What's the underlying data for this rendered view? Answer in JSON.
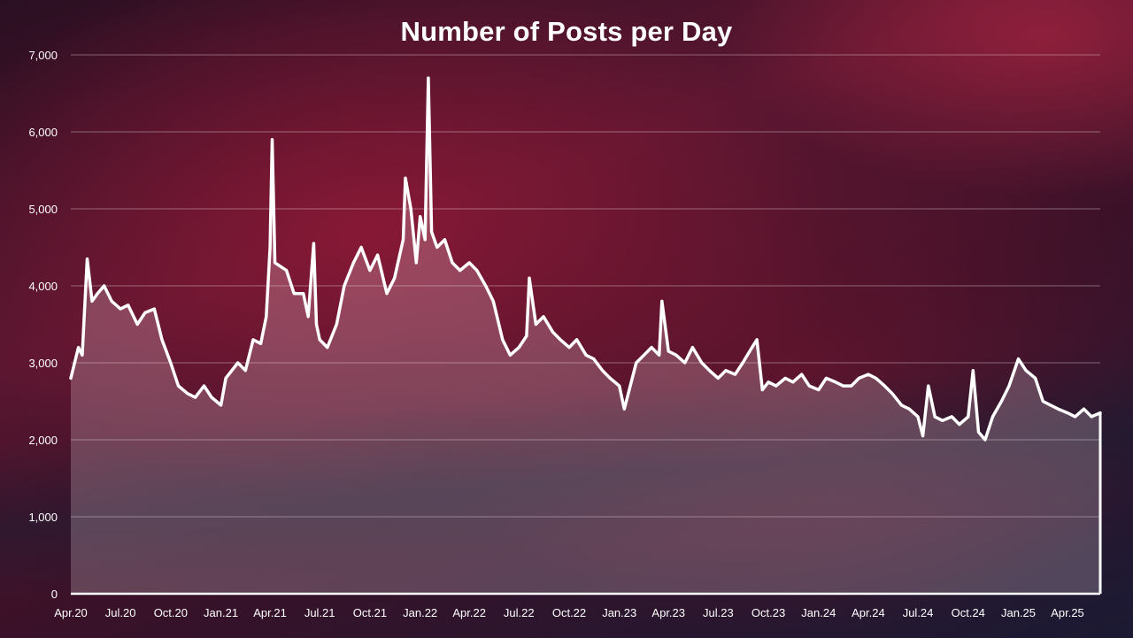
{
  "chart_data": {
    "type": "line",
    "title": "Number of Posts per Day",
    "xlabel": "",
    "ylabel": "",
    "ylim": [
      0,
      7000
    ],
    "yticks": [
      "0",
      "1,000",
      "2,000",
      "3,000",
      "4,000",
      "5,000",
      "6,000",
      "7,000"
    ],
    "ytick_values": [
      0,
      1000,
      2000,
      3000,
      4000,
      5000,
      6000,
      7000
    ],
    "xlim": [
      "2020-04-01",
      "2025-05-31"
    ],
    "x_tick_labels": [
      "Apr.20",
      "Jul.20",
      "Oct.20",
      "Jan.21",
      "Apr.21",
      "Jul.21",
      "Oct.21",
      "Jan.22",
      "Apr.22",
      "Jul.22",
      "Oct.22",
      "Jan.23",
      "Apr.23",
      "Jul.23",
      "Oct.23",
      "Jan.24",
      "Apr.24",
      "Jul.24",
      "Oct.24",
      "Jan.25",
      "Apr.25"
    ],
    "x_tick_dates": [
      "2020-04-01",
      "2020-07-01",
      "2020-10-01",
      "2021-01-01",
      "2021-04-01",
      "2021-07-01",
      "2021-10-01",
      "2022-01-01",
      "2022-04-01",
      "2022-07-01",
      "2022-10-01",
      "2023-01-01",
      "2023-04-01",
      "2023-07-01",
      "2023-10-01",
      "2024-01-01",
      "2024-04-01",
      "2024-07-01",
      "2024-10-01",
      "2025-01-01",
      "2025-04-01"
    ],
    "grid": true,
    "series": [
      {
        "name": "",
        "color": "#ffffff",
        "points": [
          [
            "2020-04-01",
            2800
          ],
          [
            "2020-04-08",
            3000
          ],
          [
            "2020-04-15",
            3200
          ],
          [
            "2020-04-22",
            3100
          ],
          [
            "2020-05-01",
            4350
          ],
          [
            "2020-05-10",
            3800
          ],
          [
            "2020-05-20",
            3900
          ],
          [
            "2020-06-01",
            4000
          ],
          [
            "2020-06-15",
            3800
          ],
          [
            "2020-07-01",
            3700
          ],
          [
            "2020-07-15",
            3750
          ],
          [
            "2020-08-01",
            3500
          ],
          [
            "2020-08-15",
            3650
          ],
          [
            "2020-09-01",
            3700
          ],
          [
            "2020-09-15",
            3300
          ],
          [
            "2020-10-01",
            3000
          ],
          [
            "2020-10-15",
            2700
          ],
          [
            "2020-11-01",
            2600
          ],
          [
            "2020-11-15",
            2550
          ],
          [
            "2020-12-01",
            2700
          ],
          [
            "2020-12-15",
            2550
          ],
          [
            "2021-01-01",
            2450
          ],
          [
            "2021-01-10",
            2800
          ],
          [
            "2021-02-01",
            3000
          ],
          [
            "2021-02-15",
            2900
          ],
          [
            "2021-03-01",
            3300
          ],
          [
            "2021-03-15",
            3250
          ],
          [
            "2021-03-25",
            3600
          ],
          [
            "2021-04-01",
            4500
          ],
          [
            "2021-04-05",
            5900
          ],
          [
            "2021-04-10",
            4300
          ],
          [
            "2021-05-01",
            4200
          ],
          [
            "2021-05-15",
            3900
          ],
          [
            "2021-06-01",
            3900
          ],
          [
            "2021-06-10",
            3600
          ],
          [
            "2021-06-20",
            4550
          ],
          [
            "2021-06-25",
            3500
          ],
          [
            "2021-07-01",
            3300
          ],
          [
            "2021-07-15",
            3200
          ],
          [
            "2021-08-01",
            3500
          ],
          [
            "2021-08-15",
            4000
          ],
          [
            "2021-09-01",
            4300
          ],
          [
            "2021-09-15",
            4500
          ],
          [
            "2021-10-01",
            4200
          ],
          [
            "2021-10-15",
            4400
          ],
          [
            "2021-11-01",
            3900
          ],
          [
            "2021-11-15",
            4100
          ],
          [
            "2021-12-01",
            4600
          ],
          [
            "2021-12-05",
            5400
          ],
          [
            "2021-12-15",
            5000
          ],
          [
            "2021-12-25",
            4300
          ],
          [
            "2022-01-01",
            4900
          ],
          [
            "2022-01-10",
            4600
          ],
          [
            "2022-01-16",
            6700
          ],
          [
            "2022-01-22",
            4700
          ],
          [
            "2022-02-01",
            4500
          ],
          [
            "2022-02-15",
            4600
          ],
          [
            "2022-03-01",
            4300
          ],
          [
            "2022-03-15",
            4200
          ],
          [
            "2022-04-01",
            4300
          ],
          [
            "2022-04-15",
            4200
          ],
          [
            "2022-05-01",
            4000
          ],
          [
            "2022-05-15",
            3800
          ],
          [
            "2022-06-01",
            3300
          ],
          [
            "2022-06-15",
            3100
          ],
          [
            "2022-07-01",
            3200
          ],
          [
            "2022-07-15",
            3350
          ],
          [
            "2022-07-20",
            4100
          ],
          [
            "2022-08-01",
            3500
          ],
          [
            "2022-08-15",
            3600
          ],
          [
            "2022-09-01",
            3400
          ],
          [
            "2022-09-15",
            3300
          ],
          [
            "2022-10-01",
            3200
          ],
          [
            "2022-10-15",
            3300
          ],
          [
            "2022-11-01",
            3100
          ],
          [
            "2022-11-15",
            3050
          ],
          [
            "2022-12-01",
            2900
          ],
          [
            "2022-12-15",
            2800
          ],
          [
            "2023-01-01",
            2700
          ],
          [
            "2023-01-10",
            2400
          ],
          [
            "2023-02-01",
            3000
          ],
          [
            "2023-02-15",
            3100
          ],
          [
            "2023-03-01",
            3200
          ],
          [
            "2023-03-15",
            3100
          ],
          [
            "2023-03-20",
            3800
          ],
          [
            "2023-04-01",
            3150
          ],
          [
            "2023-04-15",
            3100
          ],
          [
            "2023-05-01",
            3000
          ],
          [
            "2023-05-15",
            3200
          ],
          [
            "2023-06-01",
            3000
          ],
          [
            "2023-06-15",
            2900
          ],
          [
            "2023-07-01",
            2800
          ],
          [
            "2023-07-15",
            2900
          ],
          [
            "2023-08-01",
            2850
          ],
          [
            "2023-08-15",
            3000
          ],
          [
            "2023-09-01",
            3200
          ],
          [
            "2023-09-10",
            3300
          ],
          [
            "2023-09-20",
            2650
          ],
          [
            "2023-10-01",
            2750
          ],
          [
            "2023-10-15",
            2700
          ],
          [
            "2023-11-01",
            2800
          ],
          [
            "2023-11-15",
            2750
          ],
          [
            "2023-12-01",
            2850
          ],
          [
            "2023-12-15",
            2700
          ],
          [
            "2024-01-01",
            2650
          ],
          [
            "2024-01-15",
            2800
          ],
          [
            "2024-02-01",
            2750
          ],
          [
            "2024-02-15",
            2700
          ],
          [
            "2024-03-01",
            2700
          ],
          [
            "2024-03-15",
            2800
          ],
          [
            "2024-04-01",
            2850
          ],
          [
            "2024-04-15",
            2800
          ],
          [
            "2024-05-01",
            2700
          ],
          [
            "2024-05-15",
            2600
          ],
          [
            "2024-06-01",
            2450
          ],
          [
            "2024-06-15",
            2400
          ],
          [
            "2024-07-01",
            2300
          ],
          [
            "2024-07-10",
            2050
          ],
          [
            "2024-07-20",
            2700
          ],
          [
            "2024-08-01",
            2300
          ],
          [
            "2024-08-15",
            2250
          ],
          [
            "2024-09-01",
            2300
          ],
          [
            "2024-09-15",
            2200
          ],
          [
            "2024-10-01",
            2300
          ],
          [
            "2024-10-10",
            2900
          ],
          [
            "2024-10-20",
            2100
          ],
          [
            "2024-11-01",
            2000
          ],
          [
            "2024-11-15",
            2300
          ],
          [
            "2024-12-01",
            2500
          ],
          [
            "2024-12-15",
            2700
          ],
          [
            "2025-01-01",
            3050
          ],
          [
            "2025-01-15",
            2900
          ],
          [
            "2025-02-01",
            2800
          ],
          [
            "2025-02-15",
            2500
          ],
          [
            "2025-03-01",
            2450
          ],
          [
            "2025-03-15",
            2400
          ],
          [
            "2025-04-01",
            2350
          ],
          [
            "2025-04-15",
            2300
          ],
          [
            "2025-05-01",
            2400
          ],
          [
            "2025-05-15",
            2300
          ],
          [
            "2025-05-31",
            2350
          ]
        ]
      }
    ]
  }
}
